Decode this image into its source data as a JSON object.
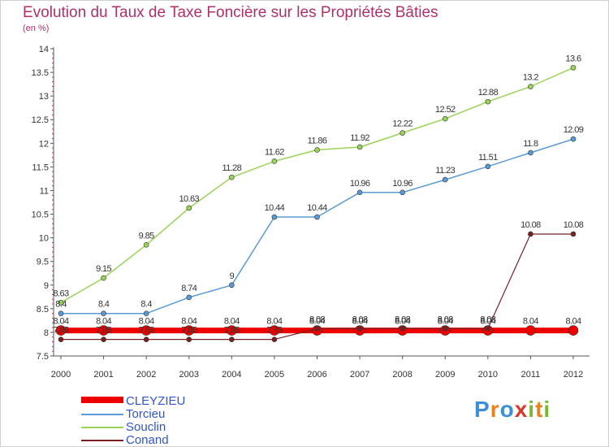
{
  "header": {
    "title": "Evolution du Taux de Taxe Foncière sur les Propriétés Bâties",
    "subtitle": "(en %)"
  },
  "logo": {
    "letters": [
      "P",
      "r",
      "o",
      "x",
      "i",
      "t",
      "i"
    ],
    "colors": [
      "#3a8fd8",
      "#e8821e",
      "#3a8fd8",
      "#d8392b",
      "#7ab82f",
      "#e8821e",
      "#7ab82f"
    ]
  },
  "chart_data": {
    "type": "line",
    "title": "Evolution du Taux de Taxe Foncière sur les Propriétés Bâties",
    "ylabel": "(en %)",
    "x": [
      "2000",
      "2001",
      "2002",
      "2003",
      "2004",
      "2005",
      "2006",
      "2007",
      "2008",
      "2009",
      "2010",
      "2011",
      "2012"
    ],
    "ylim": [
      7.5,
      14
    ],
    "yticks": [
      "7.5",
      "8",
      "8.5",
      "9",
      "9.5",
      "10",
      "10.5",
      "11",
      "11.5",
      "12",
      "12.5",
      "13",
      "13.5",
      "14"
    ],
    "grid": false,
    "legend_position": "bottom-left",
    "series": [
      {
        "name": "CLEYZIEU",
        "color": "#ee0000",
        "width": 7,
        "marker": 6,
        "values": [
          8.04,
          8.04,
          8.04,
          8.04,
          8.04,
          8.04,
          8.04,
          8.04,
          8.04,
          8.04,
          8.04,
          8.04,
          8.04
        ],
        "labels": [
          "8.04",
          "8.04",
          "8.04",
          "8.04",
          "8.04",
          "8.04",
          "8.04",
          "8.04",
          "8.04",
          "8.04",
          "8.04",
          "8.04",
          "8.04"
        ]
      },
      {
        "name": "Torcieu",
        "color": "#5a9bd5",
        "width": 1.5,
        "marker": 3,
        "values": [
          8.4,
          8.4,
          8.4,
          8.74,
          9,
          10.44,
          10.44,
          10.96,
          10.96,
          11.23,
          11.51,
          11.8,
          12.09
        ],
        "labels": [
          "8.4",
          "8.4",
          "8.4",
          "8.74",
          "9",
          "10.44",
          "10.44",
          "10.96",
          "10.96",
          "11.23",
          "11.51",
          "11.8",
          "12.09"
        ]
      },
      {
        "name": "Souclin",
        "color": "#9ad35a",
        "width": 1.5,
        "marker": 3,
        "values": [
          8.63,
          9.15,
          9.85,
          10.63,
          11.28,
          11.62,
          11.86,
          11.92,
          12.22,
          12.52,
          12.88,
          13.2,
          13.6
        ],
        "labels": [
          "8.63",
          "9.15",
          "9.85",
          "10.63",
          "11.28",
          "11.62",
          "11.86",
          "11.92",
          "12.22",
          "12.52",
          "12.88",
          "13.2",
          "13.6"
        ]
      },
      {
        "name": "Conand",
        "color": "#7a2020",
        "width": 1.2,
        "marker": 3,
        "values": [
          7.85,
          7.85,
          7.85,
          7.85,
          7.85,
          7.85,
          8.08,
          8.08,
          8.08,
          8.08,
          8.08,
          10.08,
          10.08
        ],
        "labels": [
          "7.85",
          "7.85",
          "7.85",
          "7.85",
          "7.85",
          "7.85",
          "8.08",
          "8.08",
          "8.08",
          "8.08",
          "8.08",
          "10.08",
          "10.08"
        ]
      }
    ]
  }
}
